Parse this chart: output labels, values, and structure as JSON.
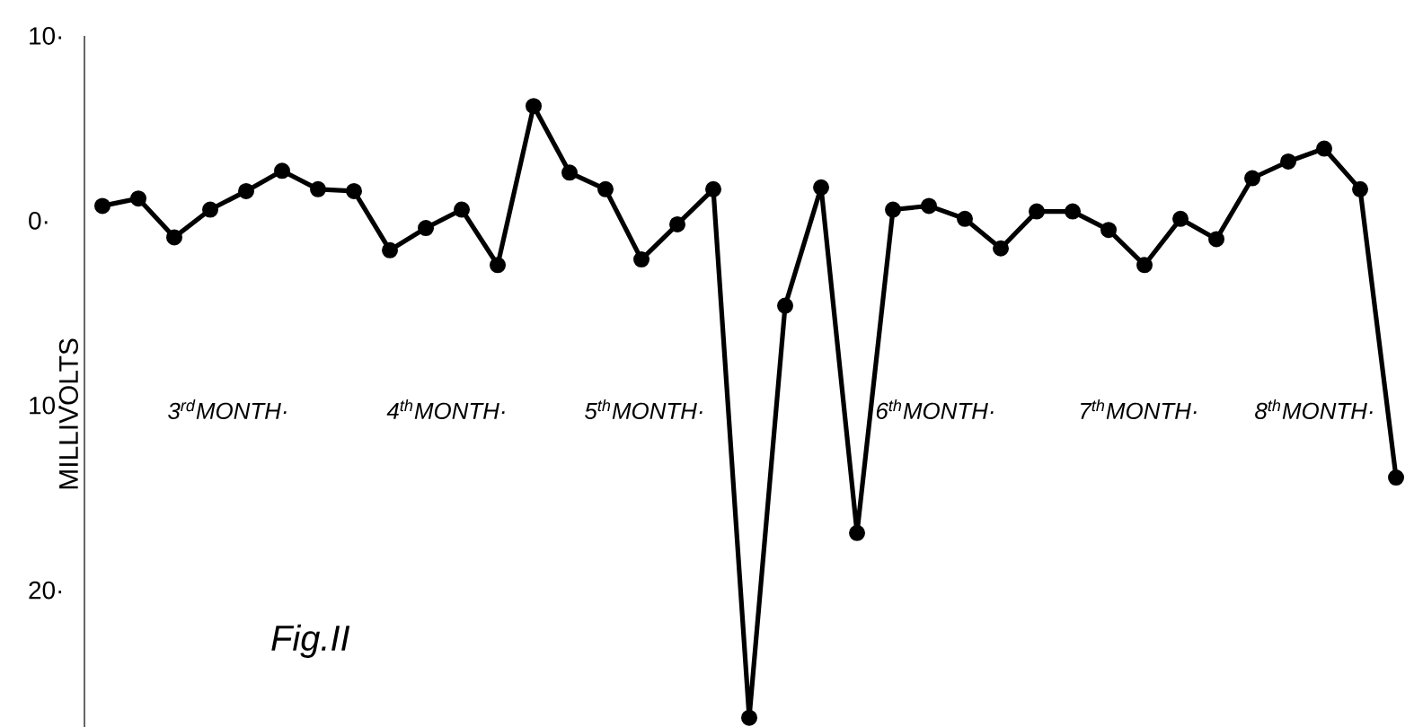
{
  "chart_data": {
    "type": "line",
    "title": "Fig.II",
    "ylabel": "MILLIVOLTS",
    "categories": [
      null,
      null,
      null,
      null,
      null,
      null,
      null,
      null,
      null,
      null,
      null,
      null,
      null,
      null,
      null,
      null,
      null,
      null,
      null,
      null,
      null,
      null,
      null,
      null,
      null,
      null,
      null,
      null,
      null,
      null,
      null,
      null,
      null,
      null,
      null,
      null,
      null
    ],
    "series": [
      {
        "color": "#000000",
        "values": [
          0.8,
          1.2,
          -0.9,
          0.6,
          1.6,
          2.7,
          1.7,
          1.6,
          -1.6,
          -0.4,
          0.6,
          -2.4,
          6.2,
          2.6,
          1.7,
          -2.1,
          -0.2,
          1.7,
          -26.9,
          -4.6,
          1.8,
          -16.9,
          0.6,
          0.8,
          0.1,
          -1.5,
          0.5,
          0.5,
          -0.5,
          -2.4,
          0.1,
          -1.0,
          2.3,
          3.2,
          3.9,
          1.7,
          -13.9
        ]
      }
    ],
    "marker": "circle",
    "line_style": "solid",
    "ylim": [
      -27.5,
      10
    ],
    "yticks": [
      {
        "value": 10,
        "label": "10·"
      },
      {
        "value": 0,
        "label": "0·"
      },
      {
        "value": -10,
        "label": "10·"
      },
      {
        "value": -20,
        "label": "20·"
      }
    ],
    "tick_labels": "y",
    "annotations": [
      "3$^{rd}$MONTH·",
      "4$^{th}$MONTH·",
      "5$^{th}$MONTH·",
      "6$^{th}$MONTH·",
      "7$^{th}$MONTH·",
      "8$^{th}$MONTH·"
    ]
  }
}
